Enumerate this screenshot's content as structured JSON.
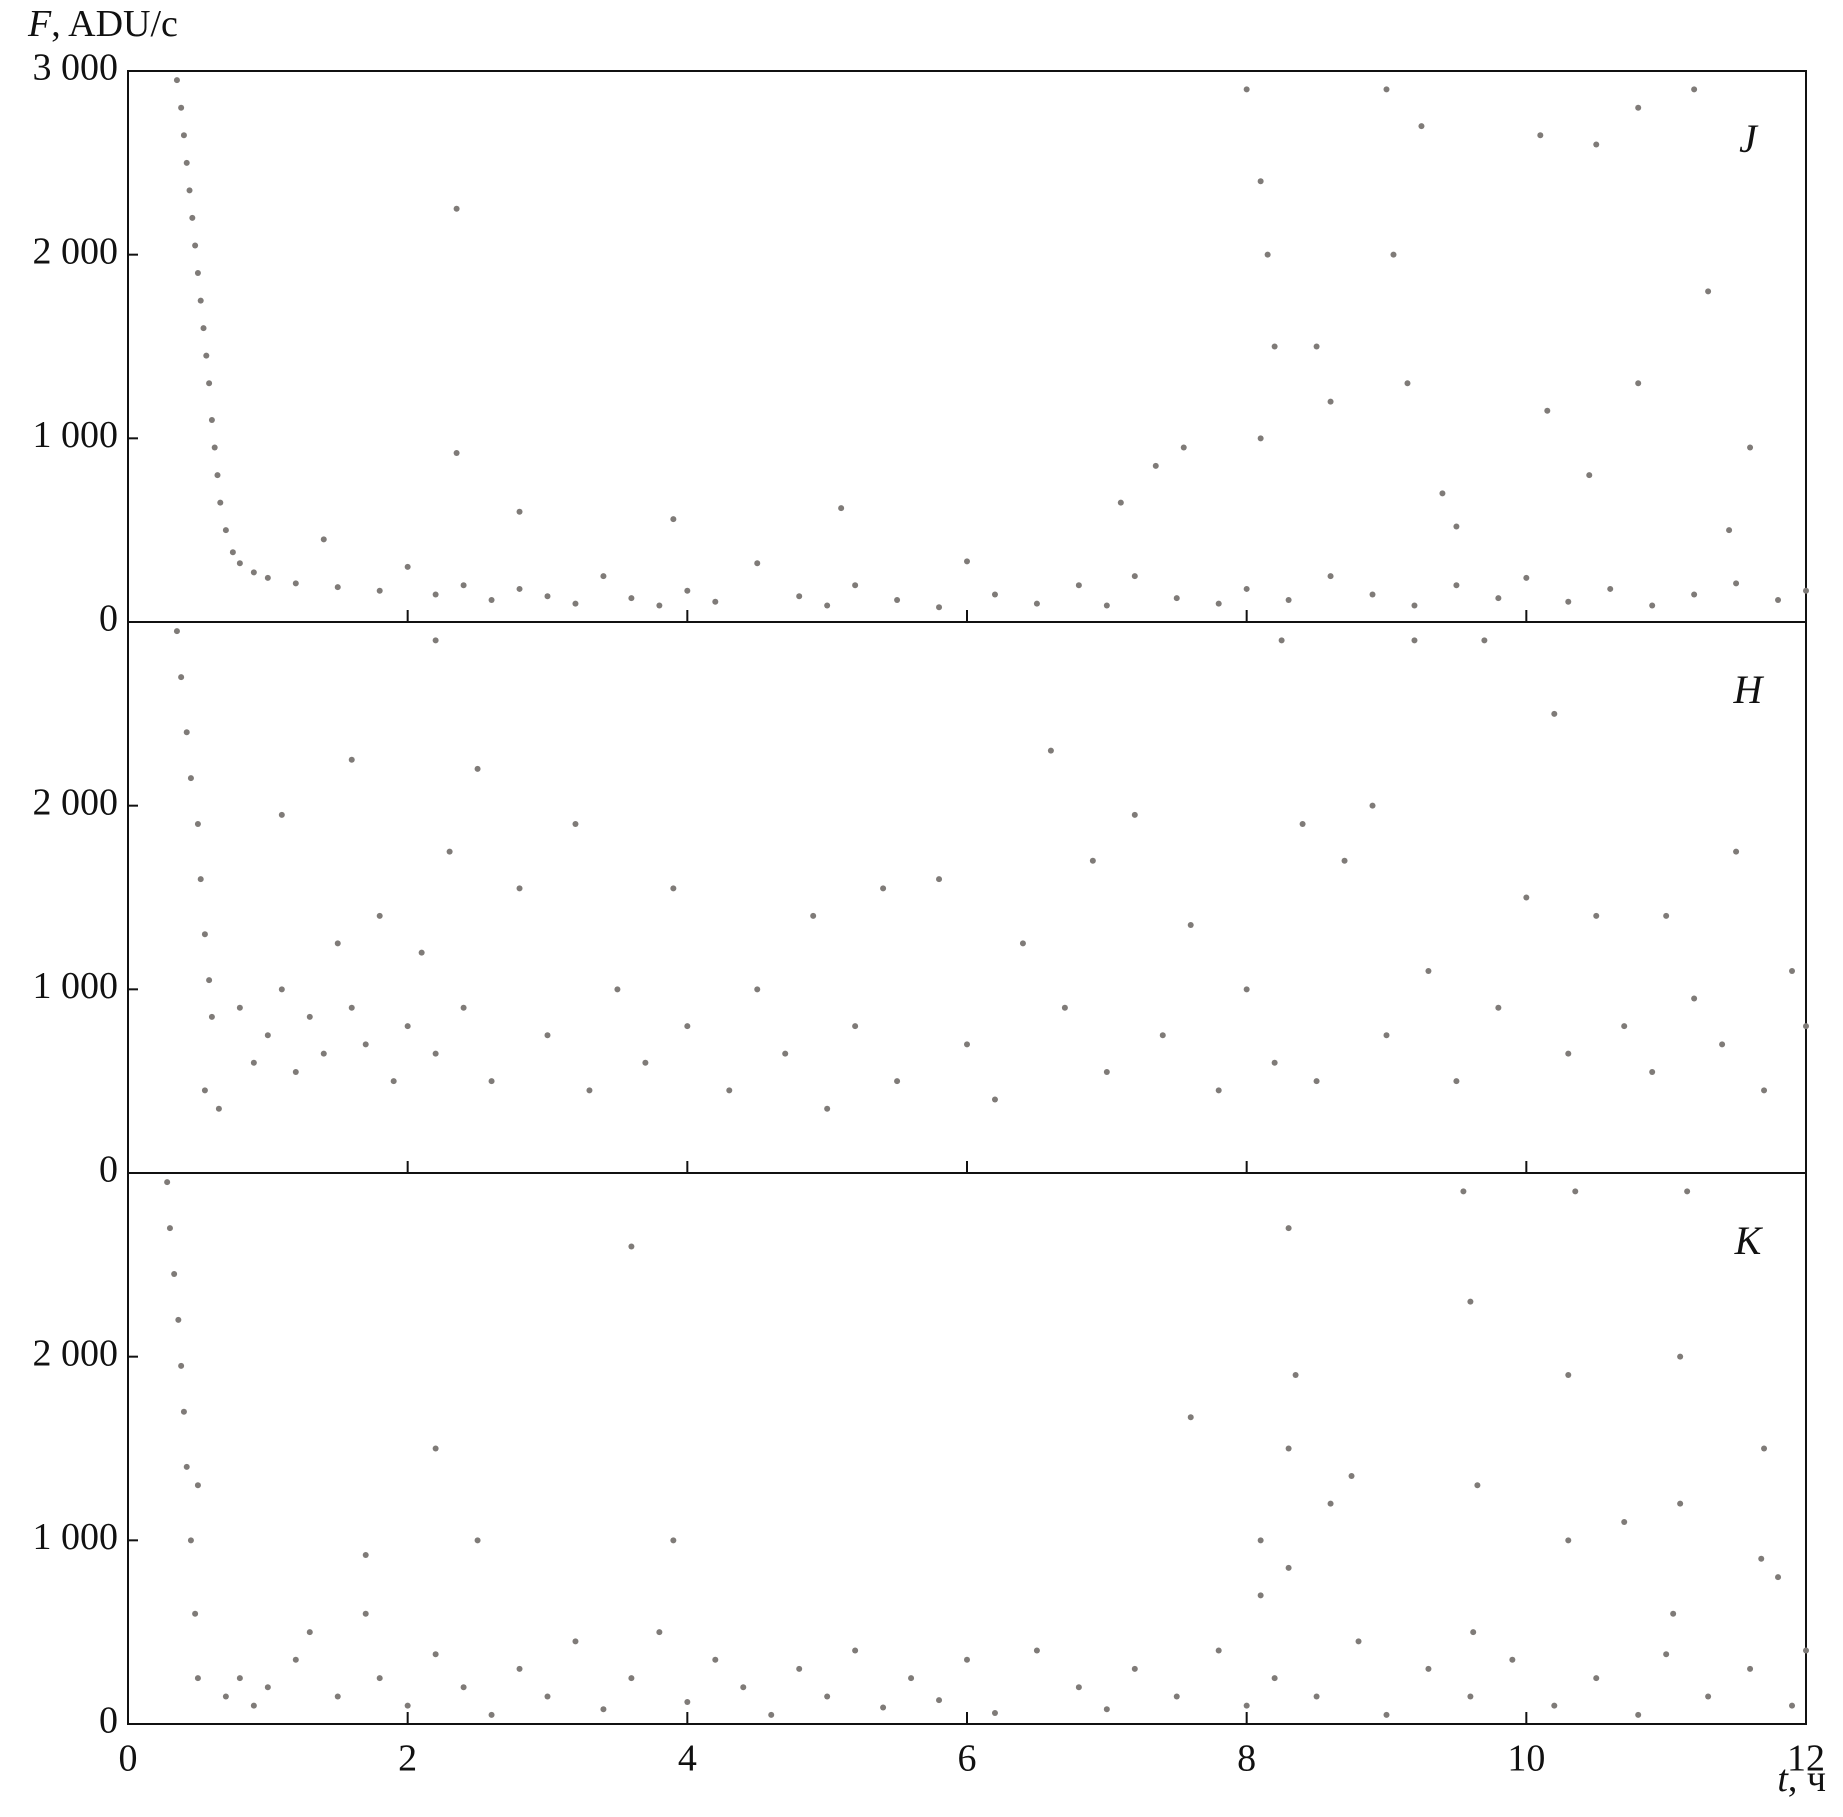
{
  "chart_data": [
    {
      "type": "scatter",
      "label": "J",
      "y_label": "F, ADU/c",
      "color": "#7f7b78",
      "xlim": [
        0,
        12
      ],
      "xticks": [
        0,
        2,
        4,
        6,
        8,
        10,
        12
      ],
      "ylim": [
        0,
        3000
      ],
      "yticks": [
        0,
        {
          "value": 1000,
          "label": "1 000"
        },
        {
          "value": 2000,
          "label": "2 000"
        },
        {
          "value": 3000,
          "label": "3 000"
        }
      ],
      "points": [
        [
          0.35,
          2950
        ],
        [
          0.38,
          2800
        ],
        [
          0.4,
          2650
        ],
        [
          0.42,
          2500
        ],
        [
          0.44,
          2350
        ],
        [
          0.46,
          2200
        ],
        [
          0.48,
          2050
        ],
        [
          0.5,
          1900
        ],
        [
          0.52,
          1750
        ],
        [
          0.54,
          1600
        ],
        [
          0.56,
          1450
        ],
        [
          0.58,
          1300
        ],
        [
          0.6,
          1100
        ],
        [
          0.62,
          950
        ],
        [
          0.64,
          800
        ],
        [
          0.66,
          650
        ],
        [
          0.7,
          500
        ],
        [
          0.75,
          380
        ],
        [
          0.8,
          320
        ],
        [
          0.9,
          270
        ],
        [
          1.0,
          240
        ],
        [
          1.2,
          210
        ],
        [
          1.4,
          450
        ],
        [
          1.5,
          190
        ],
        [
          1.8,
          170
        ],
        [
          2.0,
          300
        ],
        [
          2.2,
          150
        ],
        [
          2.4,
          200
        ],
        [
          2.6,
          120
        ],
        [
          2.8,
          180
        ],
        [
          3.0,
          140
        ],
        [
          3.2,
          100
        ],
        [
          3.4,
          250
        ],
        [
          3.6,
          130
        ],
        [
          3.8,
          90
        ],
        [
          4.0,
          170
        ],
        [
          4.2,
          110
        ],
        [
          4.5,
          320
        ],
        [
          4.8,
          140
        ],
        [
          5.0,
          90
        ],
        [
          5.2,
          200
        ],
        [
          5.5,
          120
        ],
        [
          5.8,
          80
        ],
        [
          6.0,
          330
        ],
        [
          6.2,
          150
        ],
        [
          6.5,
          100
        ],
        [
          6.8,
          200
        ],
        [
          7.0,
          90
        ],
        [
          7.2,
          250
        ],
        [
          7.5,
          130
        ],
        [
          7.8,
          100
        ],
        [
          8.0,
          180
        ],
        [
          8.3,
          120
        ],
        [
          8.6,
          250
        ],
        [
          8.9,
          150
        ],
        [
          9.2,
          90
        ],
        [
          9.5,
          200
        ],
        [
          9.8,
          130
        ],
        [
          10.0,
          240
        ],
        [
          10.3,
          110
        ],
        [
          10.6,
          180
        ],
        [
          10.9,
          90
        ],
        [
          11.2,
          150
        ],
        [
          11.5,
          210
        ],
        [
          11.8,
          120
        ],
        [
          12.0,
          170
        ],
        [
          2.35,
          2250
        ],
        [
          2.35,
          920
        ],
        [
          2.8,
          600
        ],
        [
          3.9,
          560
        ],
        [
          5.1,
          620
        ],
        [
          7.1,
          650
        ],
        [
          7.35,
          850
        ],
        [
          7.55,
          950
        ],
        [
          8.0,
          2900
        ],
        [
          8.1,
          2400
        ],
        [
          8.15,
          2000
        ],
        [
          8.2,
          1500
        ],
        [
          8.1,
          1000
        ],
        [
          8.5,
          1500
        ],
        [
          8.6,
          1200
        ],
        [
          9.0,
          2900
        ],
        [
          9.05,
          2000
        ],
        [
          9.15,
          1300
        ],
        [
          9.25,
          2700
        ],
        [
          9.4,
          700
        ],
        [
          9.5,
          520
        ],
        [
          10.1,
          2650
        ],
        [
          10.15,
          1150
        ],
        [
          10.5,
          2600
        ],
        [
          10.45,
          800
        ],
        [
          10.8,
          2800
        ],
        [
          10.8,
          1300
        ],
        [
          11.2,
          2900
        ],
        [
          11.3,
          1800
        ],
        [
          11.6,
          950
        ],
        [
          11.45,
          500
        ]
      ]
    },
    {
      "type": "scatter",
      "label": "H",
      "color": "#7f7b78",
      "xlim": [
        0,
        12
      ],
      "xticks": [
        0,
        2,
        4,
        6,
        8,
        10,
        12
      ],
      "ylim": [
        0,
        3000
      ],
      "yticks": [
        0,
        {
          "value": 1000,
          "label": "1 000"
        },
        {
          "value": 2000,
          "label": "2 000"
        }
      ],
      "points": [
        [
          0.35,
          2950
        ],
        [
          0.38,
          2700
        ],
        [
          0.42,
          2400
        ],
        [
          0.45,
          2150
        ],
        [
          0.5,
          1900
        ],
        [
          0.52,
          1600
        ],
        [
          0.55,
          1300
        ],
        [
          0.58,
          1050
        ],
        [
          0.6,
          850
        ],
        [
          0.55,
          450
        ],
        [
          0.65,
          350
        ],
        [
          0.8,
          900
        ],
        [
          0.9,
          600
        ],
        [
          1.0,
          750
        ],
        [
          1.1,
          1000
        ],
        [
          1.2,
          550
        ],
        [
          1.3,
          850
        ],
        [
          1.4,
          650
        ],
        [
          1.5,
          1250
        ],
        [
          1.6,
          900
        ],
        [
          1.7,
          700
        ],
        [
          1.8,
          1400
        ],
        [
          1.9,
          500
        ],
        [
          2.0,
          800
        ],
        [
          2.1,
          1200
        ],
        [
          2.2,
          650
        ],
        [
          2.3,
          1750
        ],
        [
          2.4,
          900
        ],
        [
          2.6,
          500
        ],
        [
          2.8,
          1550
        ],
        [
          3.0,
          750
        ],
        [
          3.2,
          1900
        ],
        [
          3.3,
          450
        ],
        [
          3.5,
          1000
        ],
        [
          3.7,
          600
        ],
        [
          3.9,
          1550
        ],
        [
          4.0,
          800
        ],
        [
          4.3,
          450
        ],
        [
          4.5,
          1000
        ],
        [
          4.7,
          650
        ],
        [
          4.9,
          1400
        ],
        [
          5.0,
          350
        ],
        [
          5.2,
          800
        ],
        [
          5.4,
          1550
        ],
        [
          5.5,
          500
        ],
        [
          5.8,
          1600
        ],
        [
          6.0,
          700
        ],
        [
          6.2,
          400
        ],
        [
          6.4,
          1250
        ],
        [
          6.6,
          2300
        ],
        [
          6.7,
          900
        ],
        [
          6.9,
          1700
        ],
        [
          7.0,
          550
        ],
        [
          7.2,
          1950
        ],
        [
          7.4,
          750
        ],
        [
          7.6,
          1350
        ],
        [
          7.8,
          450
        ],
        [
          8.0,
          1000
        ],
        [
          8.2,
          600
        ],
        [
          8.25,
          2900
        ],
        [
          8.4,
          1900
        ],
        [
          8.5,
          500
        ],
        [
          8.7,
          1700
        ],
        [
          8.9,
          2000
        ],
        [
          9.0,
          750
        ],
        [
          9.2,
          2900
        ],
        [
          9.3,
          1100
        ],
        [
          9.5,
          500
        ],
        [
          9.7,
          2900
        ],
        [
          9.8,
          900
        ],
        [
          10.0,
          1500
        ],
        [
          10.2,
          2500
        ],
        [
          10.3,
          650
        ],
        [
          10.5,
          1400
        ],
        [
          10.7,
          800
        ],
        [
          10.9,
          550
        ],
        [
          11.0,
          1400
        ],
        [
          11.2,
          950
        ],
        [
          11.4,
          700
        ],
        [
          11.5,
          1750
        ],
        [
          11.7,
          450
        ],
        [
          11.9,
          1100
        ],
        [
          12.0,
          800
        ],
        [
          2.2,
          2900
        ],
        [
          1.6,
          2250
        ],
        [
          2.5,
          2200
        ],
        [
          1.1,
          1950
        ]
      ]
    },
    {
      "type": "scatter",
      "label": "K",
      "x_label": "t, ч",
      "color": "#7f7b78",
      "xlim": [
        0,
        12
      ],
      "xticks": [
        0,
        2,
        4,
        6,
        8,
        10,
        12
      ],
      "ylim": [
        0,
        3000
      ],
      "yticks": [
        0,
        {
          "value": 1000,
          "label": "1 000"
        },
        {
          "value": 2000,
          "label": "2 000"
        }
      ],
      "points": [
        [
          0.28,
          2950
        ],
        [
          0.3,
          2700
        ],
        [
          0.33,
          2450
        ],
        [
          0.36,
          2200
        ],
        [
          0.38,
          1950
        ],
        [
          0.4,
          1700
        ],
        [
          0.42,
          1400
        ],
        [
          0.45,
          1000
        ],
        [
          0.48,
          600
        ],
        [
          0.5,
          250
        ],
        [
          0.5,
          1300
        ],
        [
          0.7,
          150
        ],
        [
          0.8,
          250
        ],
        [
          0.9,
          100
        ],
        [
          1.0,
          200
        ],
        [
          1.2,
          350
        ],
        [
          1.3,
          500
        ],
        [
          1.5,
          150
        ],
        [
          1.7,
          600
        ],
        [
          1.8,
          250
        ],
        [
          2.0,
          100
        ],
        [
          2.2,
          380
        ],
        [
          2.4,
          200
        ],
        [
          2.6,
          50
        ],
        [
          2.8,
          300
        ],
        [
          3.0,
          150
        ],
        [
          3.2,
          450
        ],
        [
          3.4,
          80
        ],
        [
          3.6,
          250
        ],
        [
          3.8,
          500
        ],
        [
          4.0,
          120
        ],
        [
          4.2,
          350
        ],
        [
          4.4,
          200
        ],
        [
          4.6,
          50
        ],
        [
          4.8,
          300
        ],
        [
          5.0,
          150
        ],
        [
          5.2,
          400
        ],
        [
          5.4,
          90
        ],
        [
          5.6,
          250
        ],
        [
          5.8,
          130
        ],
        [
          6.0,
          350
        ],
        [
          6.2,
          60
        ],
        [
          6.5,
          400
        ],
        [
          6.8,
          200
        ],
        [
          7.0,
          80
        ],
        [
          7.2,
          300
        ],
        [
          7.5,
          150
        ],
        [
          7.8,
          400
        ],
        [
          8.0,
          100
        ],
        [
          8.2,
          250
        ],
        [
          8.5,
          150
        ],
        [
          8.8,
          450
        ],
        [
          9.0,
          50
        ],
        [
          9.3,
          300
        ],
        [
          9.6,
          150
        ],
        [
          9.9,
          350
        ],
        [
          10.2,
          100
        ],
        [
          10.5,
          250
        ],
        [
          10.8,
          50
        ],
        [
          11.0,
          380
        ],
        [
          11.3,
          150
        ],
        [
          11.6,
          300
        ],
        [
          11.9,
          100
        ],
        [
          12.0,
          400
        ],
        [
          1.7,
          920
        ],
        [
          2.2,
          1500
        ],
        [
          2.5,
          1000
        ],
        [
          3.6,
          2600
        ],
        [
          3.9,
          1000
        ],
        [
          7.6,
          1670
        ],
        [
          8.1,
          700
        ],
        [
          8.1,
          1000
        ],
        [
          8.3,
          2700
        ],
        [
          8.35,
          1900
        ],
        [
          8.3,
          1500
        ],
        [
          8.3,
          850
        ],
        [
          8.6,
          1200
        ],
        [
          8.75,
          1350
        ],
        [
          9.55,
          2900
        ],
        [
          9.6,
          2300
        ],
        [
          9.65,
          1300
        ],
        [
          9.62,
          500
        ],
        [
          10.35,
          2900
        ],
        [
          10.3,
          1900
        ],
        [
          10.3,
          1000
        ],
        [
          10.7,
          1100
        ],
        [
          11.05,
          600
        ],
        [
          11.15,
          2900
        ],
        [
          11.1,
          2000
        ],
        [
          11.1,
          1200
        ],
        [
          11.7,
          1500
        ],
        [
          11.68,
          900
        ],
        [
          11.8,
          800
        ]
      ]
    }
  ]
}
